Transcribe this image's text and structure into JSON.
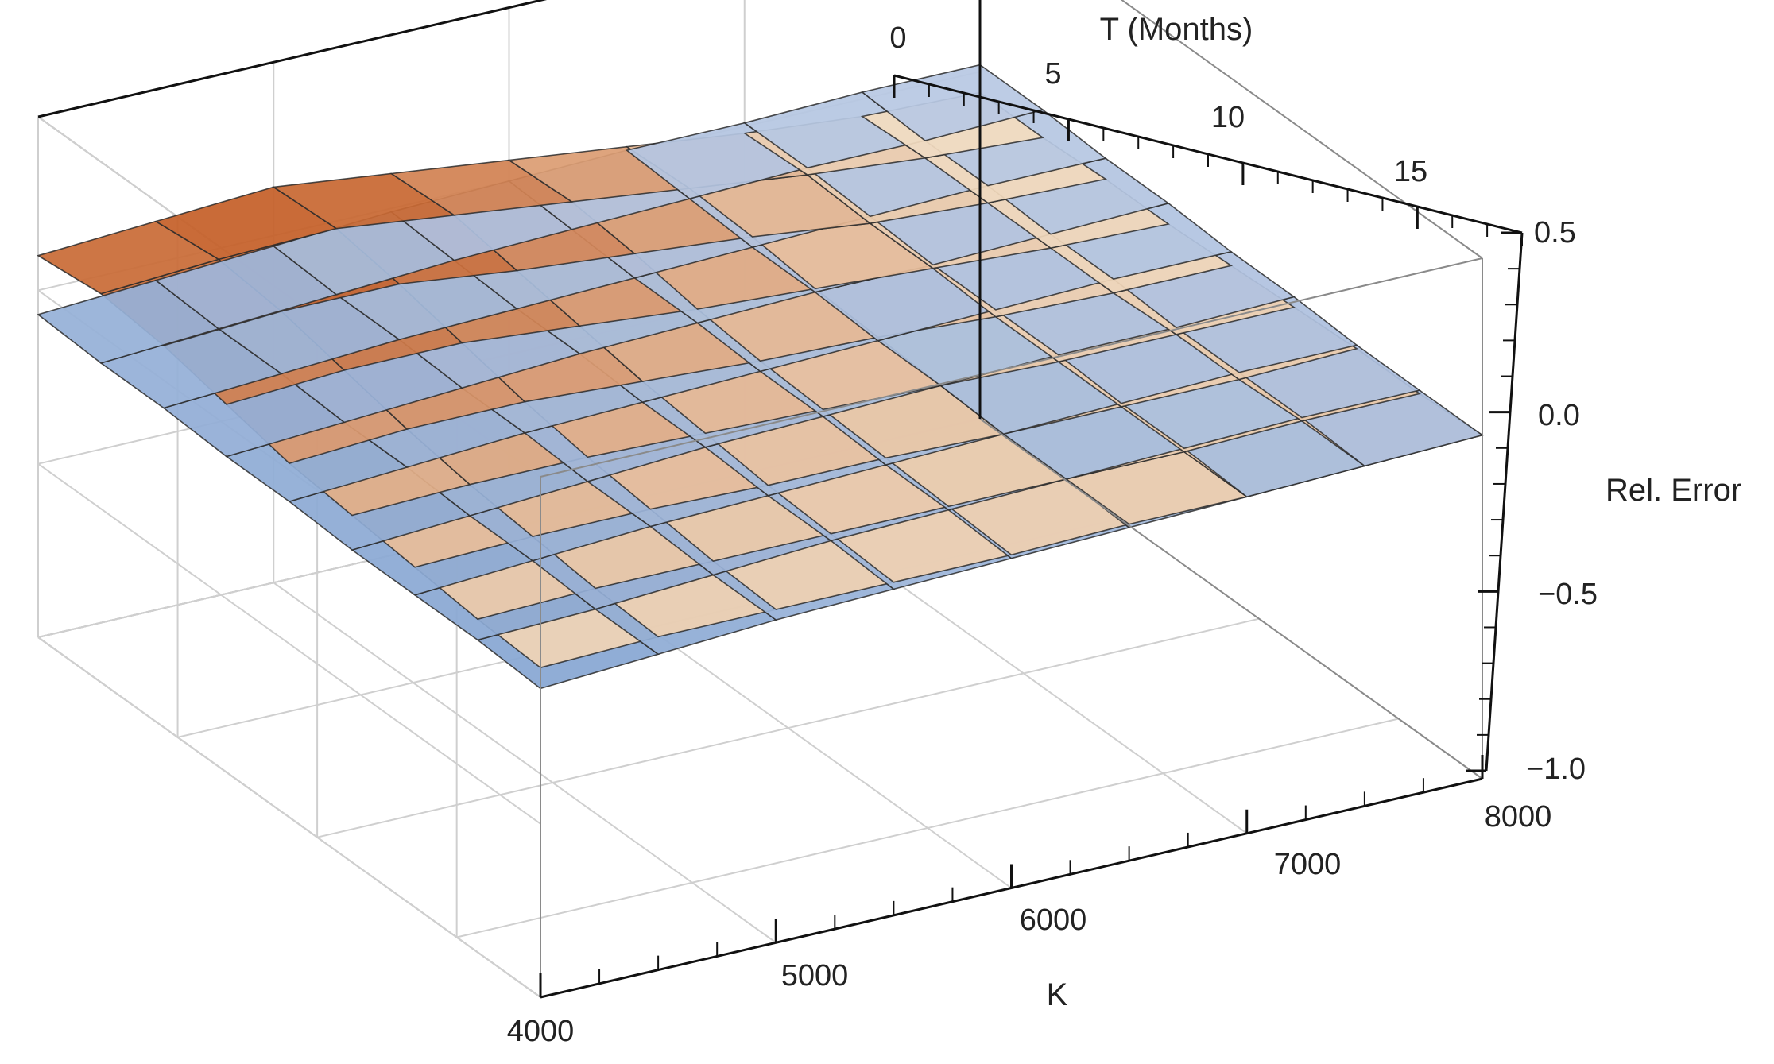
{
  "chart_data": {
    "type": "surface3d",
    "title": "",
    "axes": {
      "x": {
        "label": "K",
        "ticks": [
          4000,
          5000,
          6000,
          7000,
          8000
        ],
        "range": [
          4000,
          8000
        ]
      },
      "y": {
        "label": "T (Months)",
        "ticks": [
          0,
          5,
          10,
          15
        ],
        "range": [
          0,
          18
        ]
      },
      "z": {
        "label": "Rel. Error",
        "ticks": [
          "0.5",
          "0.0",
          "−0.5",
          "−1.0"
        ],
        "range": [
          -1.0,
          0.5
        ]
      }
    },
    "surfaces": [
      {
        "color_scheme": "blue",
        "colors": [
          "#7d9fcf",
          "#b9c9e3"
        ],
        "x": [
          4000,
          4500,
          5000,
          5500,
          6000,
          6500,
          7000,
          7500,
          8000
        ],
        "y": [
          0,
          2.25,
          4.5,
          6.75,
          9,
          11.25,
          13.5,
          15.75,
          18
        ],
        "z": [
          [
            -0.07,
            -0.05,
            -0.03,
            -0.01,
            0.0,
            0.01,
            0.01,
            0.02,
            0.02
          ],
          [
            -0.08,
            -0.06,
            -0.04,
            -0.02,
            -0.01,
            0.0,
            0.01,
            0.01,
            0.02
          ],
          [
            -0.08,
            -0.06,
            -0.04,
            -0.03,
            -0.02,
            -0.01,
            0.0,
            0.01,
            0.01
          ],
          [
            -0.09,
            -0.07,
            -0.05,
            -0.03,
            -0.02,
            -0.01,
            -0.01,
            0.0,
            0.01
          ],
          [
            -0.09,
            -0.07,
            -0.05,
            -0.04,
            -0.03,
            -0.02,
            -0.01,
            0.0,
            0.0
          ],
          [
            -0.1,
            -0.08,
            -0.06,
            -0.04,
            -0.03,
            -0.02,
            -0.01,
            -0.01,
            0.0
          ],
          [
            -0.1,
            -0.08,
            -0.06,
            -0.05,
            -0.04,
            -0.03,
            -0.02,
            -0.01,
            -0.01
          ],
          [
            -0.1,
            -0.09,
            -0.07,
            -0.05,
            -0.04,
            -0.03,
            -0.02,
            -0.01,
            -0.01
          ],
          [
            -0.11,
            -0.09,
            -0.07,
            -0.06,
            -0.05,
            -0.04,
            -0.03,
            -0.02,
            -0.01
          ]
        ]
      },
      {
        "color_scheme": "orange",
        "colors": [
          "#c2581f",
          "#f5e1c6"
        ],
        "x": [
          4000,
          4500,
          5000,
          5500,
          6000,
          6500,
          7000,
          7500,
          8000
        ],
        "y": [
          0,
          2.25,
          4.5,
          6.75,
          9,
          11.25,
          13.5,
          15.75,
          18
        ],
        "z": [
          [
            0.1,
            0.12,
            0.14,
            0.1,
            0.06,
            0.02,
            -0.02,
            -0.05,
            -0.06
          ],
          [
            0.12,
            0.14,
            0.15,
            0.11,
            0.07,
            0.03,
            -0.01,
            -0.04,
            -0.06
          ],
          [
            0.1,
            0.12,
            0.12,
            0.08,
            0.05,
            0.02,
            -0.02,
            -0.04,
            -0.05
          ],
          [
            0.06,
            0.08,
            0.08,
            0.05,
            0.02,
            0.0,
            -0.02,
            -0.04,
            -0.05
          ],
          [
            0.02,
            0.04,
            0.04,
            0.02,
            0.0,
            -0.01,
            -0.03,
            -0.04,
            -0.04
          ],
          [
            0.0,
            0.01,
            0.01,
            0.0,
            -0.01,
            -0.02,
            -0.03,
            -0.03,
            -0.03
          ],
          [
            -0.02,
            -0.01,
            -0.01,
            -0.02,
            -0.02,
            -0.03,
            -0.03,
            -0.03,
            -0.02
          ],
          [
            -0.04,
            -0.03,
            -0.03,
            -0.03,
            -0.03,
            -0.03,
            -0.03,
            -0.02,
            -0.02
          ],
          [
            -0.05,
            -0.04,
            -0.04,
            -0.04,
            -0.04,
            -0.03,
            -0.03,
            -0.02,
            -0.01
          ]
        ]
      }
    ],
    "box": true,
    "grid": true,
    "legend": "none"
  }
}
